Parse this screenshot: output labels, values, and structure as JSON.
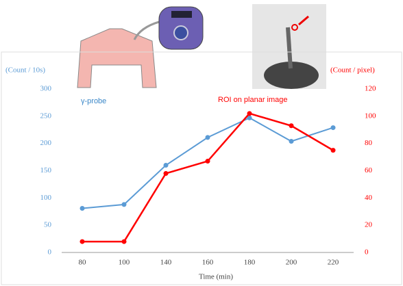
{
  "chart_data": {
    "type": "line",
    "xlabel": "Time (min)",
    "ylabel": "(Count / 10s)",
    "y2label": "(Count / pixel)",
    "categories": [
      "80",
      "100",
      "140",
      "160",
      "180",
      "200",
      "220"
    ],
    "series": [
      {
        "name": "γ-probe",
        "color": "#5b9bd5",
        "values": [
          81,
          88,
          160,
          211,
          247,
          204,
          229
        ]
      },
      {
        "name": "ROI on planar image",
        "color": "#ff0000",
        "axis": "y2",
        "values": [
          8,
          8,
          58,
          67,
          102,
          93,
          75
        ]
      }
    ],
    "ylim": [
      0,
      300
    ],
    "yticks": [
      0,
      50,
      100,
      150,
      200,
      250,
      300
    ],
    "y2lim": [
      0,
      120
    ],
    "y2ticks": [
      0,
      20,
      40,
      60,
      80,
      100,
      120
    ]
  }
}
